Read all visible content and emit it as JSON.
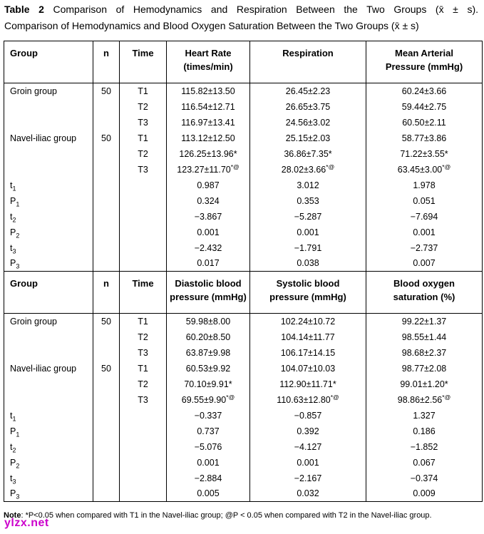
{
  "title": {
    "label": "Table 2",
    "line1_rest": " Comparison of Hemodynamics and Respiration Between the Two Groups (x̄ ± s).",
    "line2": "Comparison of Hemodynamics and Blood Oxygen Saturation Between the Two Groups (x̄ ± s)"
  },
  "table": {
    "sections": [
      {
        "columns": [
          {
            "title": "Group",
            "sub": ""
          },
          {
            "title": "n",
            "sub": ""
          },
          {
            "title": "Time",
            "sub": ""
          },
          {
            "title": "Heart Rate",
            "sub": "(times/min)"
          },
          {
            "title": "Respiration",
            "sub": ""
          },
          {
            "title": "Mean Arterial",
            "sub": "Pressure (mmHg)"
          }
        ],
        "rows": [
          [
            "Groin group",
            "50",
            "T1",
            "115.82±13.50",
            "26.45±2.23",
            "60.24±3.66"
          ],
          [
            "",
            "",
            "T2",
            "116.54±12.71",
            "26.65±3.75",
            "59.44±2.75"
          ],
          [
            "",
            "",
            "T3",
            "116.97±13.41",
            "24.56±3.02",
            "60.50±2.11"
          ],
          [
            "Navel-iliac group",
            "50",
            "T1",
            "113.12±12.50",
            "25.15±2.03",
            "58.77±3.86"
          ],
          [
            "",
            "",
            "T2",
            "126.25±13.96*",
            "36.86±7.35*",
            "71.22±3.55*"
          ],
          [
            "",
            "",
            "T3",
            {
              "v": "123.27±11.70",
              "sup": "*@"
            },
            {
              "v": "28.02±3.66",
              "sup": "*@"
            },
            {
              "v": "63.45±3.00",
              "sup": "*@"
            }
          ],
          [
            {
              "v": "t",
              "sub": "1"
            },
            "",
            "",
            "0.987",
            "3.012",
            "1.978"
          ],
          [
            {
              "v": "P",
              "sub": "1"
            },
            "",
            "",
            "0.324",
            "0.353",
            "0.051"
          ],
          [
            {
              "v": "t",
              "sub": "2"
            },
            "",
            "",
            "−3.867",
            "−5.287",
            "−7.694"
          ],
          [
            {
              "v": "P",
              "sub": "2"
            },
            "",
            "",
            "0.001",
            "0.001",
            "0.001"
          ],
          [
            {
              "v": "t",
              "sub": "3"
            },
            "",
            "",
            "−2.432",
            "−1.791",
            "−2.737"
          ],
          [
            {
              "v": "P",
              "sub": "3"
            },
            "",
            "",
            "0.017",
            "0.038",
            "0.007"
          ]
        ]
      },
      {
        "columns": [
          {
            "title": "Group",
            "sub": ""
          },
          {
            "title": "n",
            "sub": ""
          },
          {
            "title": "Time",
            "sub": ""
          },
          {
            "title": "Diastolic blood",
            "sub": "pressure (mmHg)"
          },
          {
            "title": "Systolic blood",
            "sub": "pressure (mmHg)"
          },
          {
            "title": "Blood oxygen",
            "sub": "saturation (%)"
          }
        ],
        "rows": [
          [
            "Groin group",
            "50",
            "T1",
            "59.98±8.00",
            "102.24±10.72",
            "99.22±1.37"
          ],
          [
            "",
            "",
            "T2",
            "60.20±8.50",
            "104.14±11.77",
            "98.55±1.44"
          ],
          [
            "",
            "",
            "T3",
            "63.87±9.98",
            "106.17±14.15",
            "98.68±2.37"
          ],
          [
            "Navel-iliac group",
            "50",
            "T1",
            "60.53±9.92",
            "104.07±10.03",
            "98.77±2.08"
          ],
          [
            "",
            "",
            "T2",
            "70.10±9.91*",
            "112.90±11.71*",
            "99.01±1.20*"
          ],
          [
            "",
            "",
            "T3",
            {
              "v": "69.55±9.90",
              "sup": "*@"
            },
            {
              "v": "110.63±12.80",
              "sup": "*@"
            },
            {
              "v": "98.86±2.56",
              "sup": "*@"
            }
          ],
          [
            {
              "v": "t",
              "sub": "1"
            },
            "",
            "",
            "−0.337",
            "−0.857",
            "1.327"
          ],
          [
            {
              "v": "P",
              "sub": "1"
            },
            "",
            "",
            "0.737",
            "0.392",
            "0.186"
          ],
          [
            {
              "v": "t",
              "sub": "2"
            },
            "",
            "",
            "−5.076",
            "−4.127",
            "−1.852"
          ],
          [
            {
              "v": "P",
              "sub": "2"
            },
            "",
            "",
            "0.001",
            "0.001",
            "0.067"
          ],
          [
            {
              "v": "t",
              "sub": "3"
            },
            "",
            "",
            "−2.884",
            "−2.167",
            "−0.374"
          ],
          [
            {
              "v": "P",
              "sub": "3"
            },
            "",
            "",
            "0.005",
            "0.032",
            "0.009"
          ]
        ]
      }
    ]
  },
  "note": {
    "label": "Note",
    "text": ": *P<0.05 when compared with T1 in the Navel-iliac group; @P < 0.05 when compared with T2 in the Navel-iliac group."
  },
  "watermark": {
    "text": "ylzx.net",
    "color": "#cc00cc"
  }
}
